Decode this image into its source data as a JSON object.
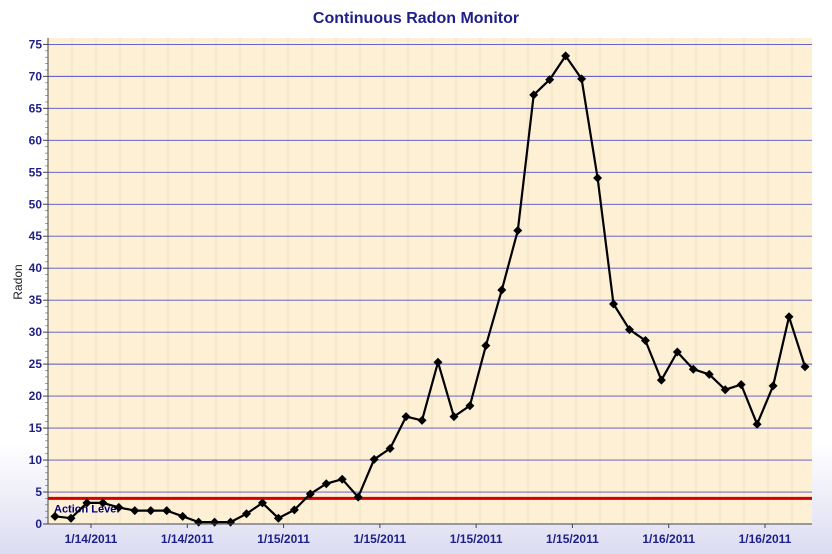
{
  "chart_data": {
    "type": "line",
    "title": "Continuous Radon Monitor",
    "xlabel": "",
    "ylabel": "Radon",
    "ylim": [
      0,
      76
    ],
    "yticks": [
      0,
      5,
      10,
      15,
      20,
      25,
      30,
      35,
      40,
      45,
      50,
      55,
      60,
      65,
      70,
      75
    ],
    "xtick_labels": [
      "1/14/2011",
      "1/14/2011",
      "1/15/2011",
      "1/15/2011",
      "1/15/2011",
      "1/15/2011",
      "1/16/2011",
      "1/16/2011"
    ],
    "grid": true,
    "series": [
      {
        "values": [
          1.2,
          0.9,
          3.3,
          3.3,
          2.6,
          2.1,
          2.1,
          2.1,
          1.2,
          0.3,
          0.3,
          0.3,
          1.6,
          3.3,
          0.9,
          2.2,
          4.7,
          6.3,
          7.0,
          4.2,
          10.1,
          11.8,
          16.8,
          16.2,
          25.3,
          16.8,
          18.5,
          27.9,
          36.6,
          45.9,
          67.1,
          69.5,
          73.2,
          69.6,
          54.1,
          34.4,
          30.4,
          28.7,
          22.5,
          26.9,
          24.2,
          23.4,
          21.0,
          21.8,
          15.6,
          21.6,
          32.4,
          24.6
        ]
      }
    ],
    "reference_line": {
      "label": "Action Level",
      "value": 4,
      "color": "#d40000"
    },
    "colors": {
      "plot_bg": "#fdf0d5",
      "grid": "#5252c8",
      "line": "#000000",
      "text": "#1f1f8a"
    }
  }
}
